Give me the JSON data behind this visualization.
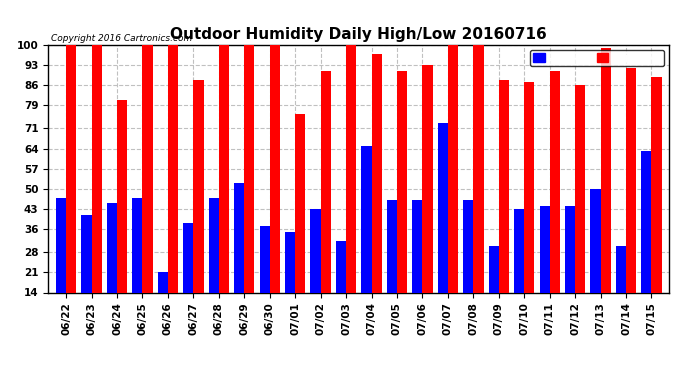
{
  "title": "Outdoor Humidity Daily High/Low 20160716",
  "copyright": "Copyright 2016 Cartronics.com",
  "dates": [
    "06/22",
    "06/23",
    "06/24",
    "06/25",
    "06/26",
    "06/27",
    "06/28",
    "06/29",
    "06/30",
    "07/01",
    "07/02",
    "07/03",
    "07/04",
    "07/05",
    "07/06",
    "07/07",
    "07/08",
    "07/09",
    "07/10",
    "07/11",
    "07/12",
    "07/13",
    "07/14",
    "07/15"
  ],
  "high": [
    100,
    100,
    81,
    100,
    100,
    88,
    100,
    100,
    100,
    76,
    91,
    100,
    97,
    91,
    93,
    100,
    100,
    88,
    87,
    91,
    86,
    99,
    92,
    89
  ],
  "low": [
    47,
    41,
    45,
    47,
    21,
    38,
    47,
    52,
    37,
    35,
    43,
    32,
    65,
    46,
    46,
    73,
    46,
    30,
    43,
    44,
    44,
    50,
    30,
    63
  ],
  "high_color": "#ff0000",
  "low_color": "#0000ff",
  "bg_color": "#ffffff",
  "grid_color": "#c0c0c0",
  "ymin": 14,
  "ymax": 100,
  "yticks": [
    14,
    21,
    28,
    36,
    43,
    50,
    57,
    64,
    71,
    79,
    86,
    93,
    100
  ],
  "bar_width": 0.4,
  "title_fontsize": 11,
  "tick_fontsize": 7.5,
  "legend_fontsize": 7
}
